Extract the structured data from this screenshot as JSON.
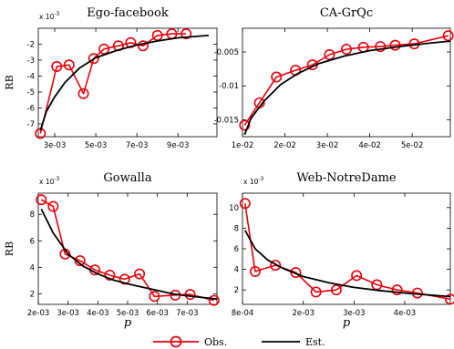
{
  "chart_data": [
    {
      "type": "line",
      "title": "Ego-facebook",
      "ylabel": "RB",
      "xlabel": "",
      "ymult": "x 10^{-3}",
      "xlim": [
        0.0022,
        0.0109
      ],
      "ylim": [
        -7.8,
        -1.0
      ],
      "xticks": [
        0.003,
        0.005,
        0.007,
        0.009
      ],
      "xticklabels": [
        "3e-03",
        "5e-03",
        "7e-03",
        "9e-03"
      ],
      "yticks": [
        -7,
        -6,
        -5,
        -4,
        -3,
        -2
      ],
      "yticklabels": [
        "-7",
        "-6",
        "-5",
        "-4",
        "-3",
        "-2"
      ],
      "series": [
        {
          "name": "Obs.",
          "x": [
            0.0023,
            0.0031,
            0.0037,
            0.0044,
            0.0049,
            0.0054,
            0.0061,
            0.0067,
            0.0073,
            0.008,
            0.0087,
            0.0094
          ],
          "y": [
            -7.6,
            -3.4,
            -3.3,
            -5.1,
            -2.9,
            -2.3,
            -2.1,
            -1.9,
            -2.1,
            -1.45,
            -1.35,
            -1.35
          ]
        },
        {
          "name": "Est.",
          "x": [
            0.0023,
            0.0026,
            0.003,
            0.0035,
            0.0042,
            0.005,
            0.006,
            0.007,
            0.008,
            0.009,
            0.0105
          ],
          "y": [
            -7.4,
            -6.2,
            -5.3,
            -4.4,
            -3.5,
            -2.85,
            -2.4,
            -2.05,
            -1.8,
            -1.6,
            -1.45
          ]
        }
      ]
    },
    {
      "type": "line",
      "title": "CA-GrQc",
      "ylabel": "",
      "xlabel": "",
      "ymult": "",
      "xlim": [
        0.01,
        0.059
      ],
      "ylim": [
        -0.0175,
        -0.0015
      ],
      "xticks": [
        0.01,
        0.02,
        0.03,
        0.04,
        0.05
      ],
      "xticklabels": [
        "1e-02",
        "2e-02",
        "3e-02",
        "4e-02",
        "5e-02"
      ],
      "yticks": [
        -0.015,
        -0.01,
        -0.005
      ],
      "yticklabels": [
        "-0.015",
        "-0.01",
        "-0.005"
      ],
      "series": [
        {
          "name": "Obs.",
          "x": [
            0.0105,
            0.014,
            0.018,
            0.0225,
            0.0265,
            0.0305,
            0.0345,
            0.0385,
            0.0425,
            0.046,
            0.0505,
            0.0585
          ],
          "y": [
            -0.0158,
            -0.0125,
            -0.0087,
            -0.0077,
            -0.0069,
            -0.0054,
            -0.0046,
            -0.0043,
            -0.0042,
            -0.004,
            -0.0038,
            -0.0026
          ]
        },
        {
          "name": "Est.",
          "x": [
            0.0105,
            0.012,
            0.015,
            0.019,
            0.023,
            0.028,
            0.034,
            0.04,
            0.047,
            0.054,
            0.059
          ],
          "y": [
            -0.0172,
            -0.0148,
            -0.0123,
            -0.0098,
            -0.0082,
            -0.0067,
            -0.0056,
            -0.0048,
            -0.0042,
            -0.0037,
            -0.0034
          ]
        }
      ]
    },
    {
      "type": "line",
      "title": "Gowalla",
      "ylabel": "RB",
      "xlabel": "p",
      "ymult": "x 10^{-3}",
      "xlim": [
        0.002,
        0.008
      ],
      "ylim": [
        1.2,
        9.6
      ],
      "xticks": [
        0.002,
        0.003,
        0.004,
        0.005,
        0.006,
        0.007
      ],
      "xticklabels": [
        "2e-03",
        "3e-03",
        "4e-03",
        "5e-03",
        "6e-03",
        "7e-03"
      ],
      "yticks": [
        2,
        4,
        6,
        8
      ],
      "yticklabels": [
        "2",
        "4",
        "6",
        "8"
      ],
      "series": [
        {
          "name": "Obs.",
          "x": [
            0.0021,
            0.0025,
            0.0029,
            0.0034,
            0.0039,
            0.0044,
            0.0049,
            0.0054,
            0.0059,
            0.0066,
            0.0071,
            0.0079
          ],
          "y": [
            9.1,
            8.6,
            5.0,
            4.5,
            3.8,
            3.4,
            3.1,
            3.5,
            1.8,
            1.9,
            1.95,
            1.5
          ]
        },
        {
          "name": "Est.",
          "x": [
            0.0021,
            0.0025,
            0.003,
            0.0035,
            0.004,
            0.0045,
            0.005,
            0.0055,
            0.006,
            0.0065,
            0.007,
            0.008
          ],
          "y": [
            8.4,
            6.6,
            5.0,
            4.1,
            3.5,
            3.05,
            2.75,
            2.5,
            2.25,
            2.0,
            1.85,
            1.6
          ]
        }
      ]
    },
    {
      "type": "line",
      "title": "Web-NotreDame",
      "ylabel": "",
      "xlabel": "p",
      "ymult": "x 10^{-3}",
      "xlim": [
        0.0008,
        0.0049
      ],
      "ylim": [
        0.6,
        11.4
      ],
      "xticks": [
        0.0008,
        0.002,
        0.003,
        0.004
      ],
      "xticklabels": [
        "8e-04",
        "2e-03",
        "3e-03",
        "4e-03"
      ],
      "yticks": [
        2,
        4,
        6,
        8,
        10
      ],
      "yticklabels": [
        "2",
        "4",
        "6",
        "8",
        "10"
      ],
      "series": [
        {
          "name": "Obs.",
          "x": [
            0.00085,
            0.00105,
            0.00145,
            0.00185,
            0.00225,
            0.00265,
            0.00305,
            0.00345,
            0.00385,
            0.00425,
            0.0049
          ],
          "y": [
            10.4,
            3.8,
            4.4,
            3.7,
            1.8,
            2.0,
            3.4,
            2.5,
            2.0,
            1.7,
            1.1
          ]
        },
        {
          "name": "Est.",
          "x": [
            0.00085,
            0.00105,
            0.0013,
            0.0016,
            0.002,
            0.0025,
            0.003,
            0.0035,
            0.004,
            0.0045,
            0.0049
          ],
          "y": [
            7.8,
            6.0,
            4.9,
            4.1,
            3.3,
            2.7,
            2.25,
            1.95,
            1.7,
            1.5,
            1.35
          ]
        }
      ]
    }
  ],
  "legend": {
    "obs_label": "Obs.",
    "est_label": "Est.",
    "obs_color": "#e8000b",
    "est_color": "#000000"
  }
}
